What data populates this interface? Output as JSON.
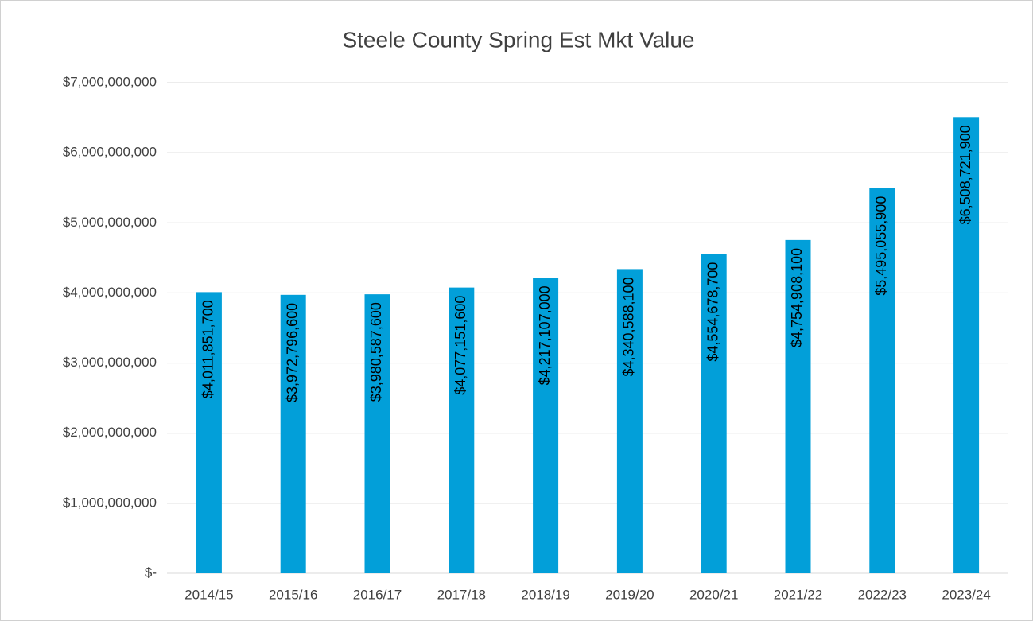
{
  "chart_data": {
    "type": "bar",
    "title": "Steele County Spring Est Mkt Value",
    "categories": [
      "2014/15",
      "2015/16",
      "2016/17",
      "2017/18",
      "2018/19",
      "2019/20",
      "2020/21",
      "2021/22",
      "2022/23",
      "2023/24"
    ],
    "values": [
      4011851700,
      3972796600,
      3980587600,
      4077151600,
      4217107000,
      4340588100,
      4554678700,
      4754908100,
      5495055900,
      6508721900
    ],
    "value_labels": [
      "$4,011,851,700",
      "$3,972,796,600",
      "$3,980,587,600",
      "$4,077,151,600",
      "$4,217,107,000",
      "$4,340,588,100",
      "$4,554,678,700",
      "$4,754,908,100",
      "$5,495,055,900",
      "$6,508,721,900"
    ],
    "color": "#029fd9",
    "ylim": [
      0,
      7000000000
    ],
    "yticks": [
      {
        "value": 0,
        "label": "$-"
      },
      {
        "value": 1000000000,
        "label": "$1,000,000,000"
      },
      {
        "value": 2000000000,
        "label": "$2,000,000,000"
      },
      {
        "value": 3000000000,
        "label": "$3,000,000,000"
      },
      {
        "value": 4000000000,
        "label": "$4,000,000,000"
      },
      {
        "value": 5000000000,
        "label": "$5,000,000,000"
      },
      {
        "value": 6000000000,
        "label": "$6,000,000,000"
      },
      {
        "value": 7000000000,
        "label": "$7,000,000,000"
      }
    ],
    "grid": true
  }
}
